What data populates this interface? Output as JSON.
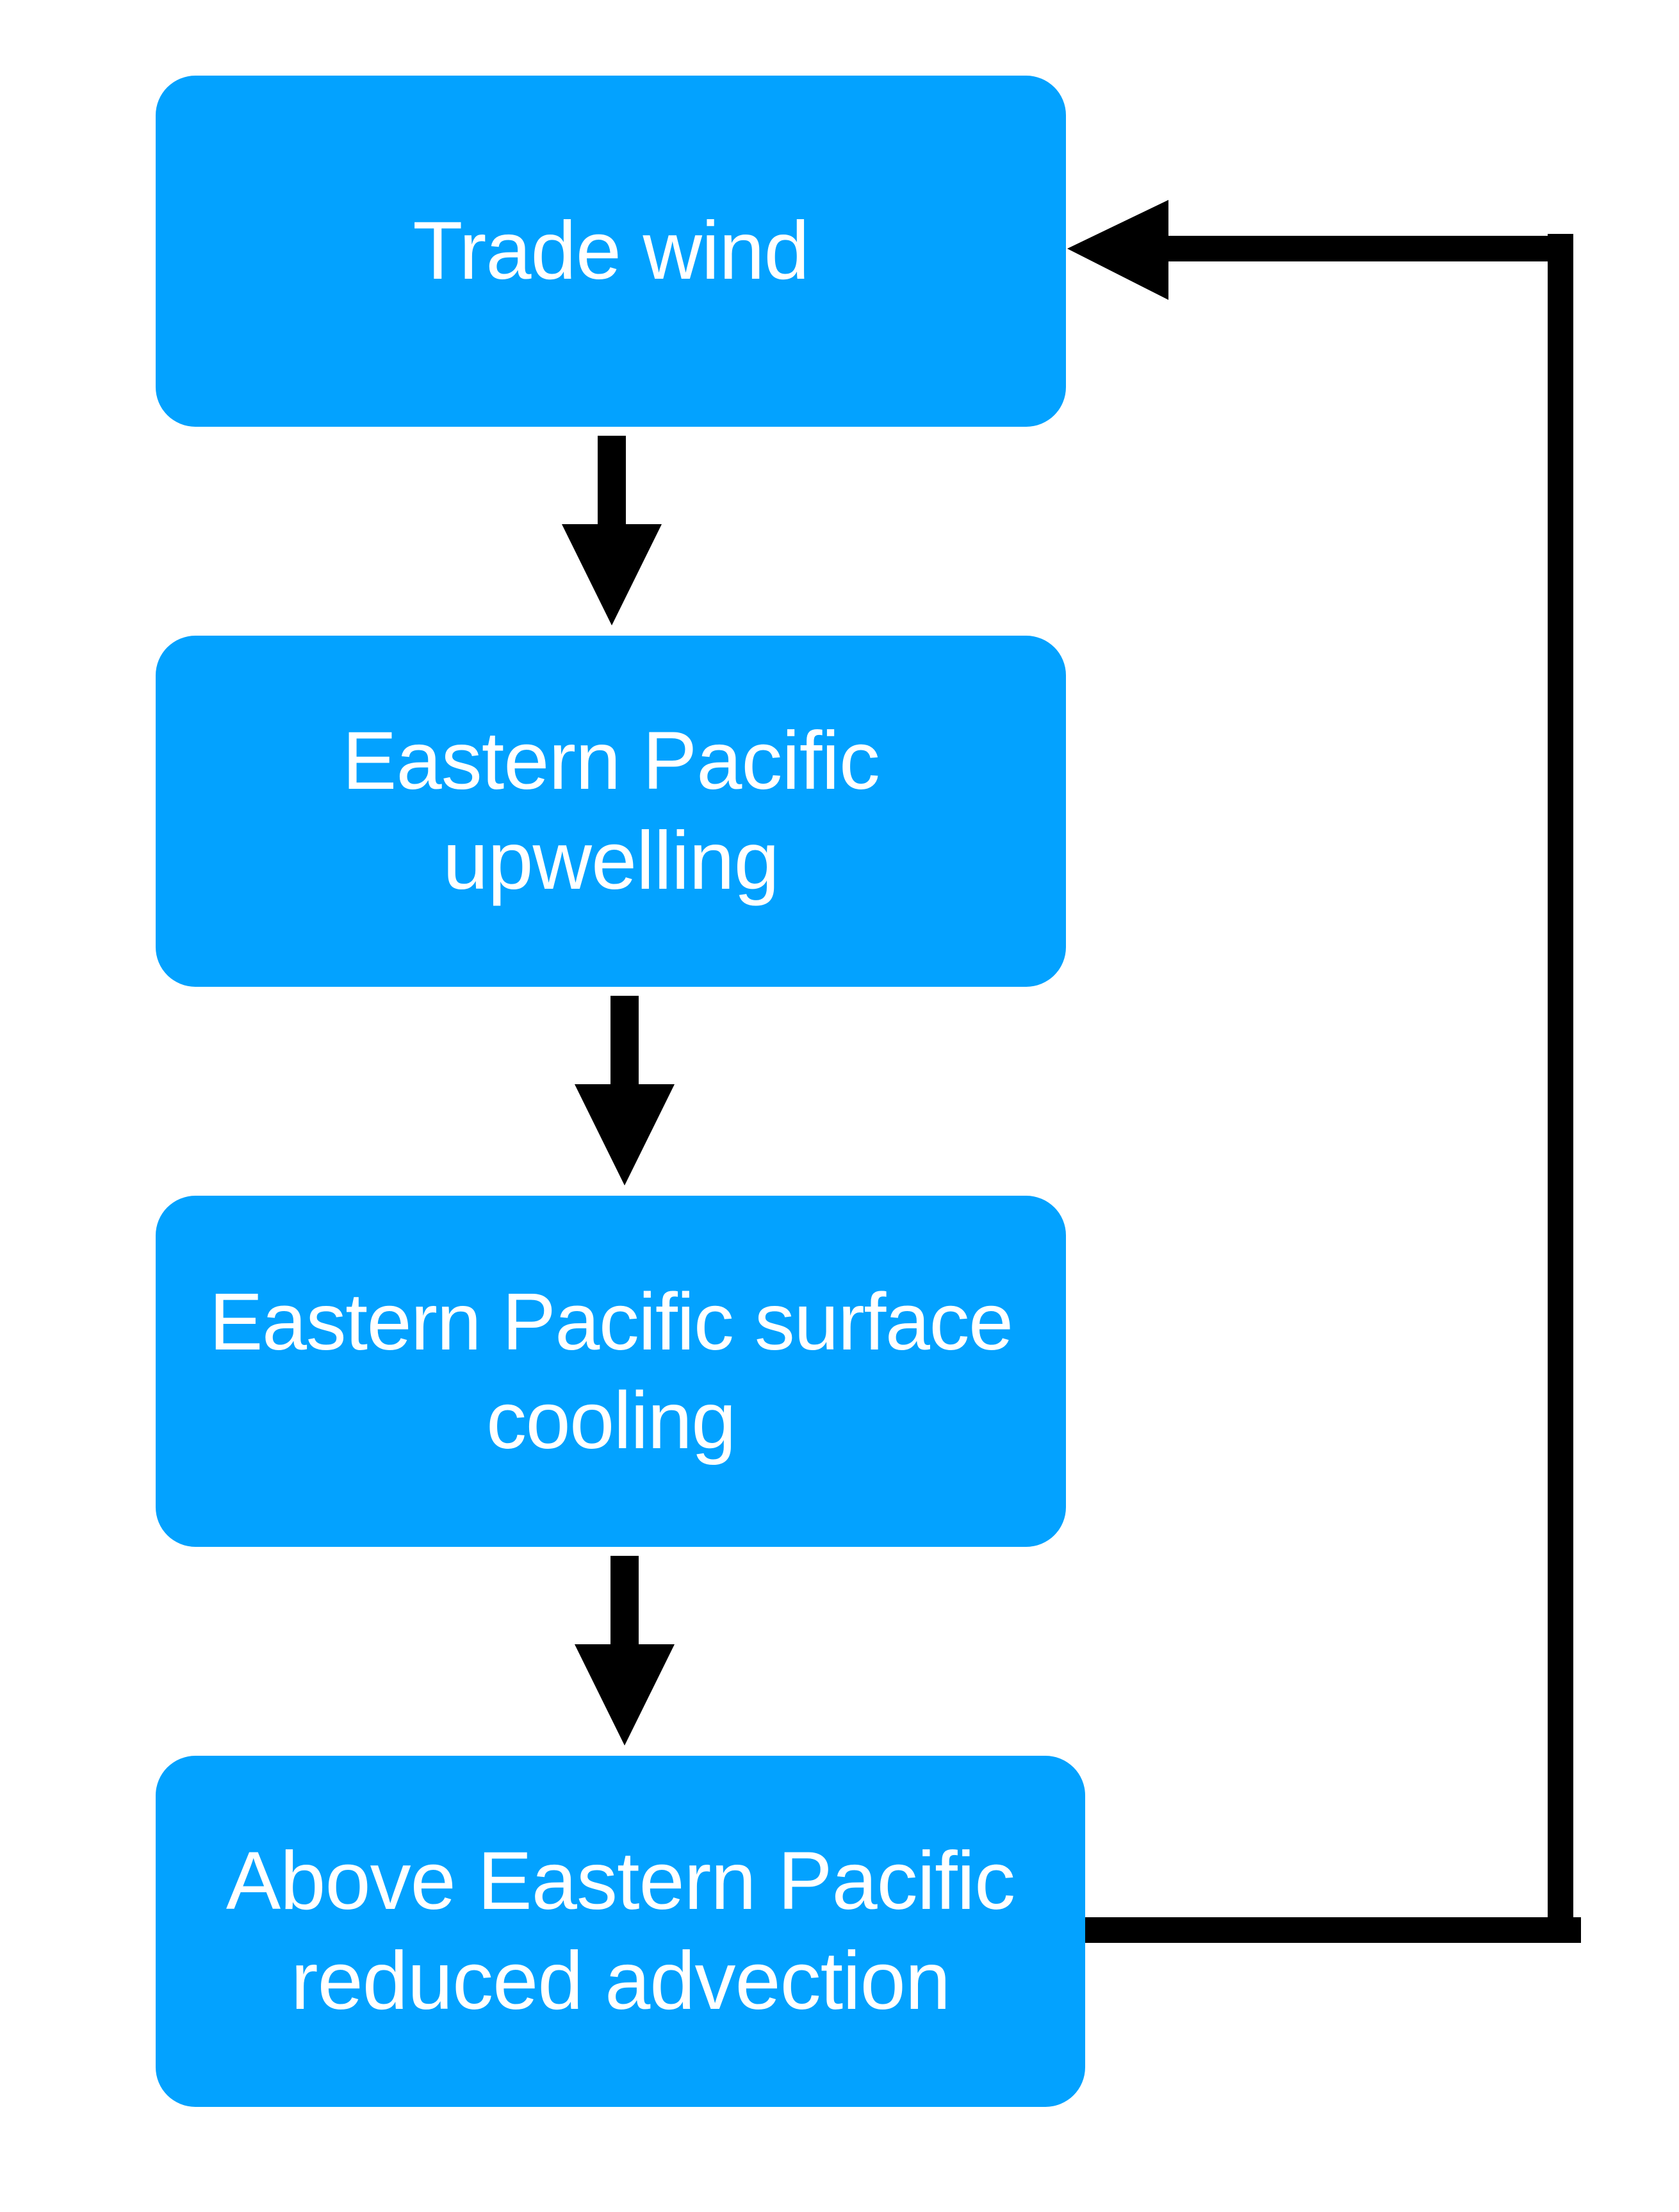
{
  "diagram": {
    "colors": {
      "box_fill": "#03a2ff",
      "box_text": "#ffffff",
      "arrow": "#000000",
      "background": "#ffffff"
    },
    "nodes": [
      {
        "id": "trade-wind",
        "label": "Trade wind"
      },
      {
        "id": "upwelling",
        "label": "Eastern Pacific\nupwelling"
      },
      {
        "id": "cooling",
        "label": "Eastern Pacific surface\ncooling"
      },
      {
        "id": "advection",
        "label": "Above Eastern Pacific\nreduced advection"
      }
    ],
    "edges": [
      {
        "from": "trade-wind",
        "to": "upwelling"
      },
      {
        "from": "upwelling",
        "to": "cooling"
      },
      {
        "from": "cooling",
        "to": "advection"
      },
      {
        "from": "advection",
        "to": "trade-wind"
      }
    ]
  }
}
